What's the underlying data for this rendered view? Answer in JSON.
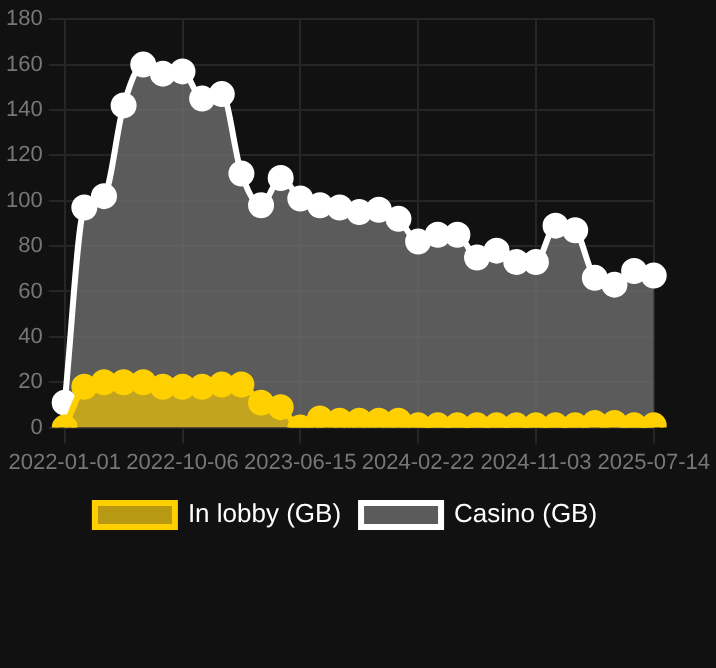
{
  "chart_data": {
    "type": "area",
    "categories": [
      "2022-01-01",
      null,
      null,
      null,
      null,
      null,
      "2022-10-06",
      null,
      null,
      null,
      null,
      null,
      "2023-06-15",
      null,
      null,
      null,
      null,
      null,
      "2024-02-22",
      null,
      null,
      null,
      null,
      null,
      "2024-11-03",
      null,
      null,
      null,
      null,
      null,
      "2025-07-14"
    ],
    "series": [
      {
        "name": "In lobby (GB)",
        "color": "#ffd000",
        "values": [
          0,
          18,
          20,
          20,
          20,
          18,
          18,
          18,
          19,
          19,
          11,
          9,
          0,
          4,
          3,
          3,
          3,
          3,
          1,
          1,
          1,
          1,
          1,
          1,
          1,
          1,
          1,
          2,
          2,
          1,
          1
        ]
      },
      {
        "name": "Casino (GB)",
        "color": "#ffffff",
        "values": [
          11,
          97,
          102,
          142,
          160,
          156,
          157,
          145,
          147,
          112,
          98,
          110,
          101,
          98,
          97,
          95,
          96,
          92,
          82,
          85,
          85,
          75,
          78,
          73,
          73,
          89,
          87,
          66,
          63,
          69,
          67
        ]
      }
    ],
    "ylim": [
      0,
      180
    ],
    "yticks": [
      0,
      20,
      40,
      60,
      80,
      100,
      120,
      140,
      160,
      180
    ],
    "grid": true,
    "legend": "bottom",
    "marker": "circle"
  }
}
